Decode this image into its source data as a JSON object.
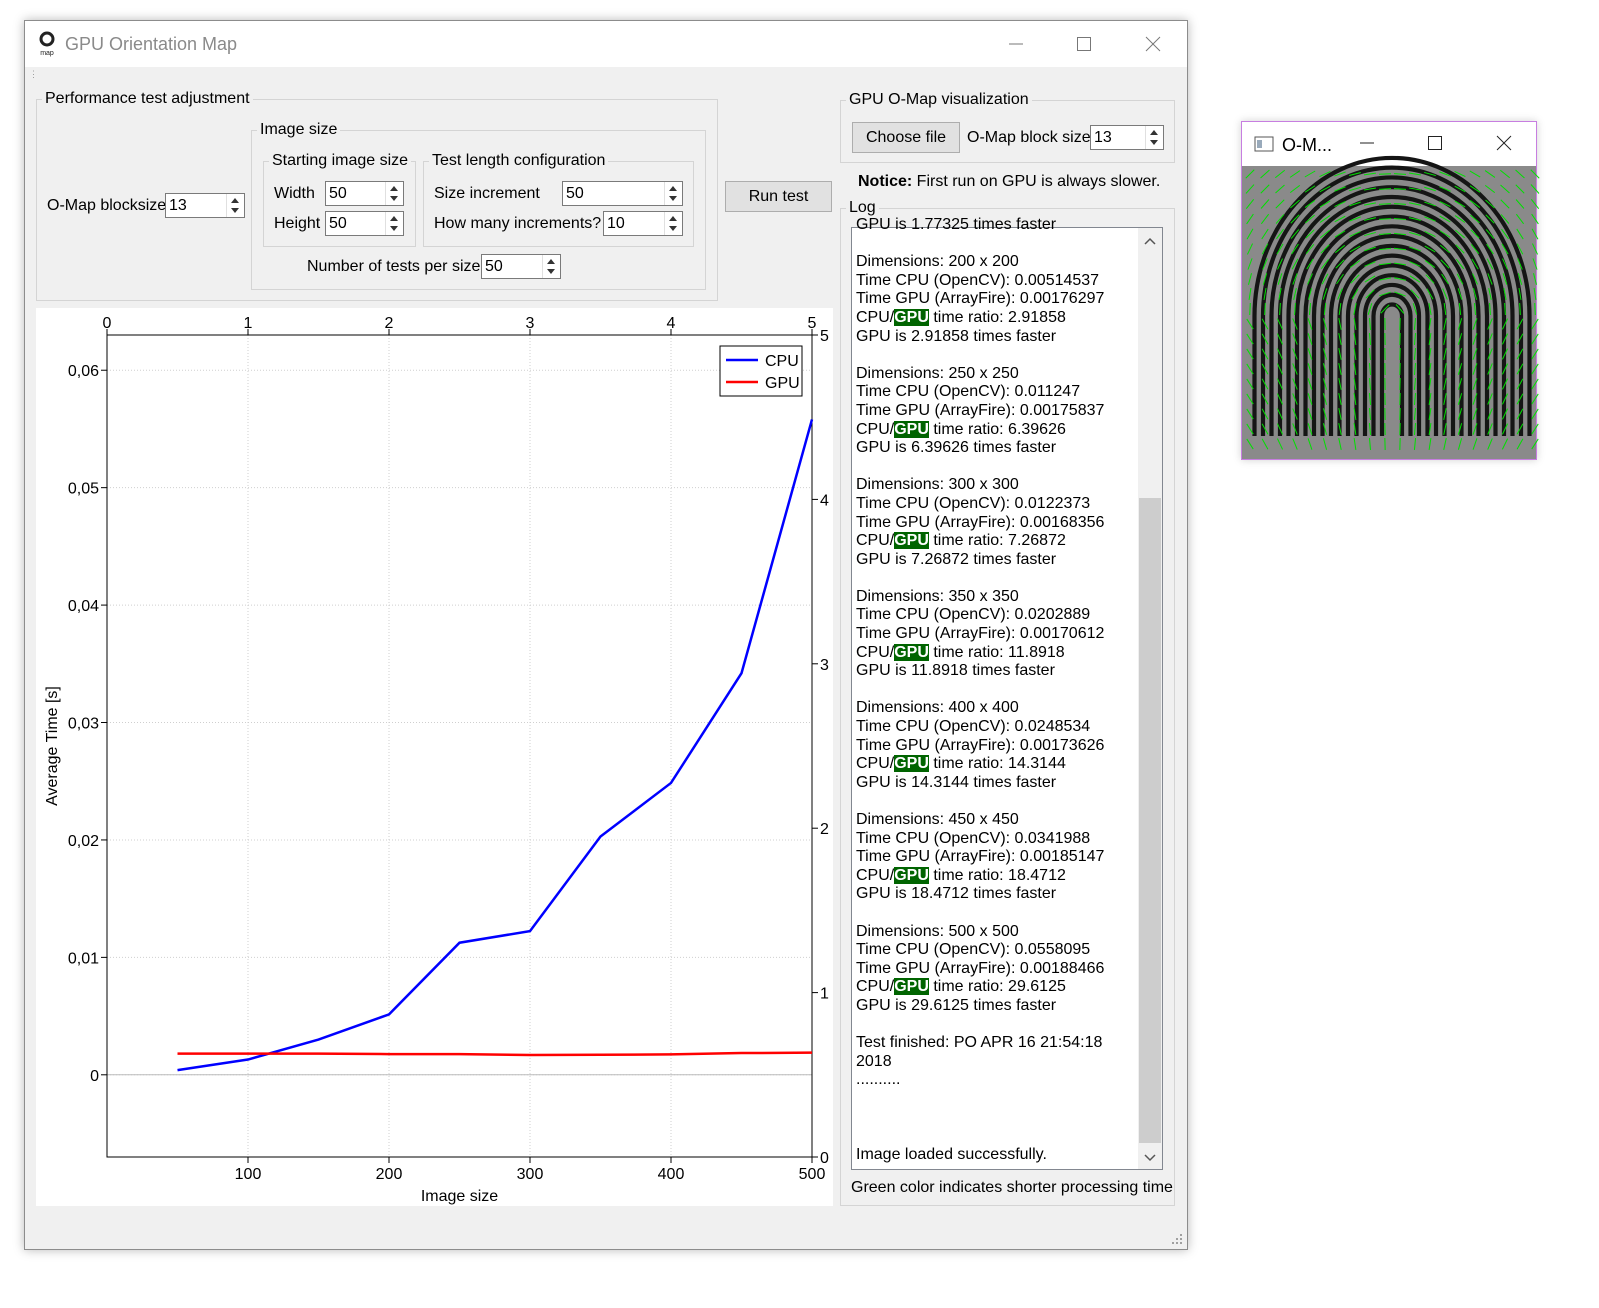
{
  "main_window": {
    "title": "GPU Orientation Map",
    "icon": "o-map-logo-icon",
    "icon_sublabel": "map",
    "controls": [
      "minimize-icon",
      "maximize-icon",
      "close-icon"
    ]
  },
  "perf_group": {
    "title": "Performance test adjustment",
    "blocksize_label": "O-Map blocksize",
    "blocksize_value": "13",
    "image_size": {
      "title": "Image size",
      "starting": {
        "title": "Starting image size",
        "width_label": "Width",
        "width_value": "50",
        "height_label": "Height",
        "height_value": "50"
      },
      "length": {
        "title": "Test length configuration",
        "increment_label": "Size increment",
        "increment_value": "50",
        "count_label": "How many increments?",
        "count_value": "10"
      },
      "tests_label": "Number of tests per size",
      "tests_value": "50"
    }
  },
  "run_button": "Run test",
  "viz_group": {
    "title": "GPU O-Map visualization",
    "choose_button": "Choose file",
    "block_label": "O-Map block size",
    "block_value": "13"
  },
  "notice": {
    "bold": "Notice:",
    "text": " First run on GPU is always slower."
  },
  "log": {
    "label": "Log",
    "partial_line": "GPU is 1.77325 times faster",
    "highlight_word": "GPU",
    "entries": [
      {
        "dim": "Dimensions: 200 x 200",
        "cpu": "Time CPU (OpenCV): 0.00514537",
        "gpu": "Time GPU (ArrayFire): 0.00176297",
        "ratio_pre": "CPU/",
        "ratio_post": " time ratio: 2.91858",
        "faster": "GPU is 2.91858 times faster"
      },
      {
        "dim": "Dimensions: 250 x 250",
        "cpu": "Time CPU (OpenCV): 0.011247",
        "gpu": "Time GPU (ArrayFire): 0.00175837",
        "ratio_pre": "CPU/",
        "ratio_post": " time ratio: 6.39626",
        "faster": "GPU is 6.39626 times faster"
      },
      {
        "dim": "Dimensions: 300 x 300",
        "cpu": "Time CPU (OpenCV): 0.0122373",
        "gpu": "Time GPU (ArrayFire): 0.00168356",
        "ratio_pre": "CPU/",
        "ratio_post": " time ratio: 7.26872",
        "faster": "GPU is 7.26872 times faster"
      },
      {
        "dim": "Dimensions: 350 x 350",
        "cpu": "Time CPU (OpenCV): 0.0202889",
        "gpu": "Time GPU (ArrayFire): 0.00170612",
        "ratio_pre": "CPU/",
        "ratio_post": " time ratio: 11.8918",
        "faster": "GPU is 11.8918 times faster"
      },
      {
        "dim": "Dimensions: 400 x 400",
        "cpu": "Time CPU (OpenCV): 0.0248534",
        "gpu": "Time GPU (ArrayFire): 0.00173626",
        "ratio_pre": "CPU/",
        "ratio_post": " time ratio: 14.3144",
        "faster": "GPU is 14.3144 times faster"
      },
      {
        "dim": "Dimensions: 450 x 450",
        "cpu": "Time CPU (OpenCV): 0.0341988",
        "gpu": "Time GPU (ArrayFire): 0.00185147",
        "ratio_pre": "CPU/",
        "ratio_post": " time ratio: 18.4712",
        "faster": "GPU is 18.4712 times faster"
      },
      {
        "dim": "Dimensions: 500 x 500",
        "cpu": "Time CPU (OpenCV): 0.0558095",
        "gpu": "Time GPU (ArrayFire): 0.00188466",
        "ratio_pre": "CPU/",
        "ratio_post": " time ratio: 29.6125",
        "faster": "GPU is 29.6125 times faster"
      }
    ],
    "finished_1": "Test finished: PO APR 16 21:54:18",
    "finished_2": "2018",
    "dots": "..........",
    "loaded": "Image loaded successfully.",
    "highlight_color": "#006400"
  },
  "footer_note": "Green color indicates shorter processing time",
  "chart_data": {
    "type": "line",
    "xlabel": "Image size",
    "ylabel": "Average Time [s]",
    "x": [
      50,
      100,
      150,
      200,
      250,
      300,
      350,
      400,
      450,
      500
    ],
    "series": [
      {
        "name": "CPU",
        "color": "#0000ff",
        "values": [
          0.0004,
          0.0013,
          0.003,
          0.00514537,
          0.011247,
          0.0122373,
          0.0202889,
          0.0248534,
          0.0341988,
          0.0558095
        ]
      },
      {
        "name": "GPU",
        "color": "#ff0000",
        "values": [
          0.0018,
          0.0018,
          0.0018,
          0.00176297,
          0.00175837,
          0.00168356,
          0.00170612,
          0.00173626,
          0.00185147,
          0.00188466
        ]
      }
    ],
    "xlim": [
      0,
      500
    ],
    "ylim": [
      -0.007,
      0.063
    ],
    "x_ticks": [
      100,
      200,
      300,
      400,
      500
    ],
    "y_ticks": [
      "0",
      "0,01",
      "0,02",
      "0,03",
      "0,04",
      "0,05",
      "0,06"
    ],
    "y_tick_values": [
      0,
      0.01,
      0.02,
      0.03,
      0.04,
      0.05,
      0.06
    ],
    "top_ticks": [
      "0",
      "1",
      "2",
      "3",
      "4",
      "5"
    ],
    "right_ticks": [
      "0",
      "1",
      "2",
      "3",
      "4",
      "5"
    ],
    "grid": true,
    "legend_position": "top-right"
  },
  "preview_window": {
    "title": "O-M...",
    "controls": [
      "minimize-icon",
      "maximize-icon",
      "close-icon"
    ],
    "image": "fingerprint-orientation-map"
  }
}
